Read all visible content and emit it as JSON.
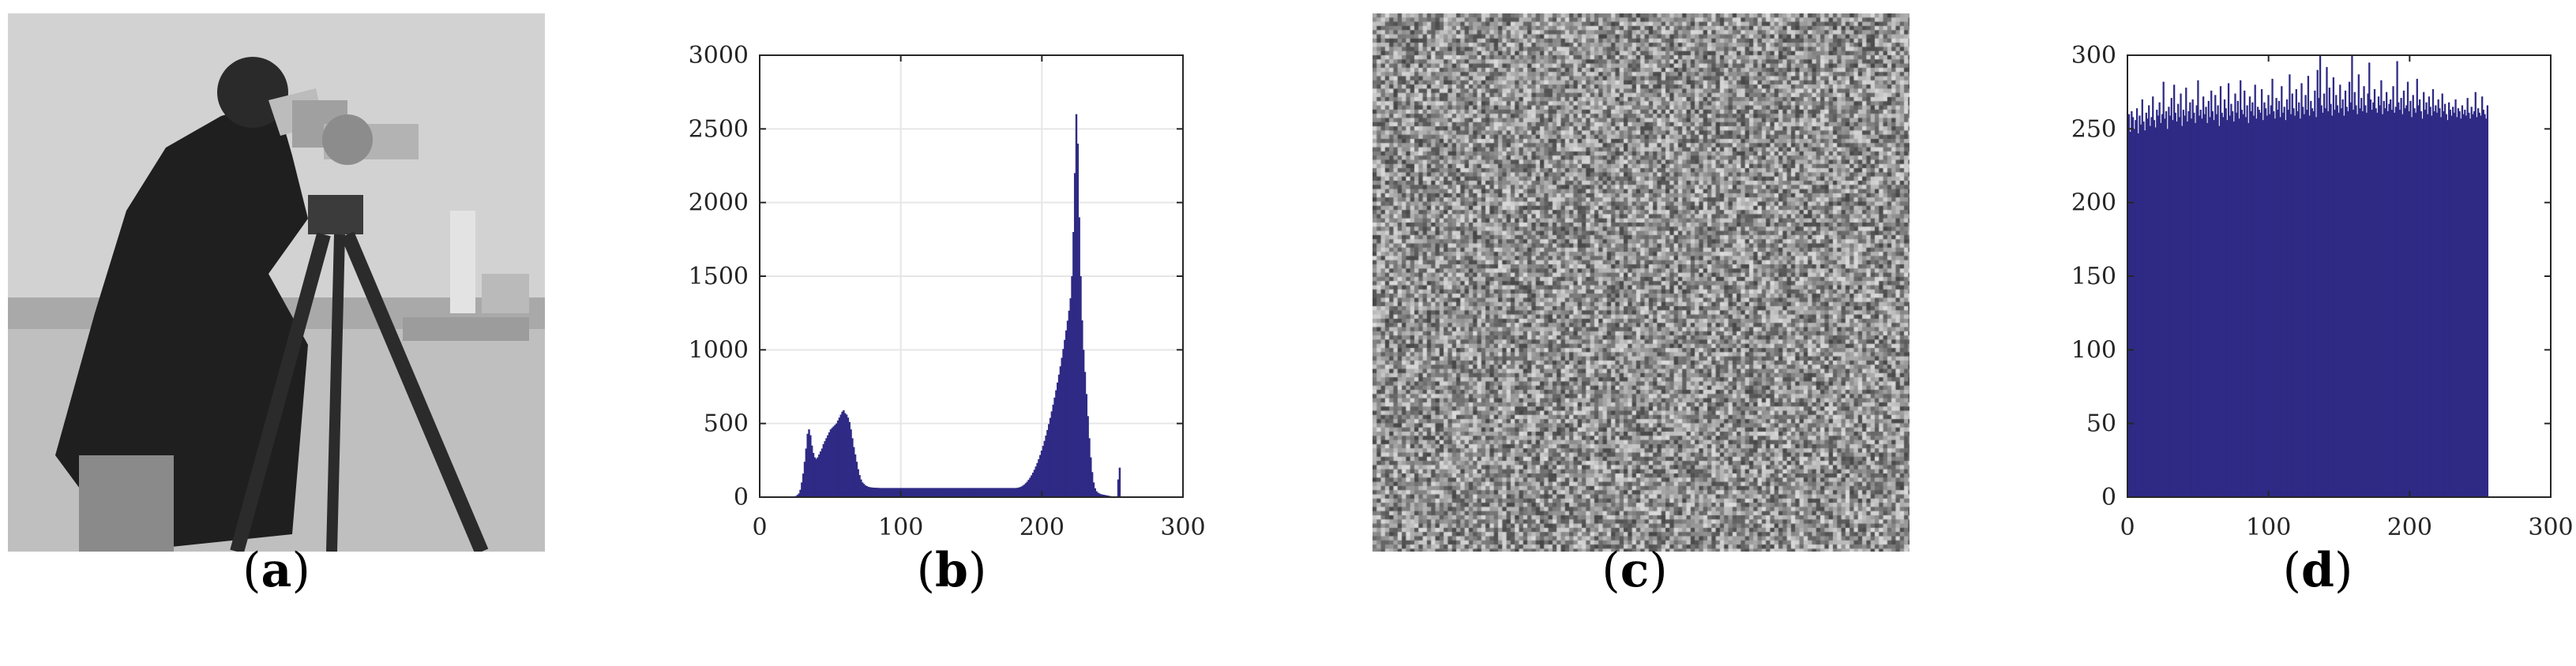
{
  "panels": {
    "a": {
      "label_open": "(",
      "label_letter": "a",
      "label_close": ")",
      "content": "cameraman grayscale photograph"
    },
    "b": {
      "label_open": "(",
      "label_letter": "b",
      "label_close": ")"
    },
    "c": {
      "label_open": "(",
      "label_letter": "c",
      "label_close": ")",
      "content": "uniform random noise image"
    },
    "d": {
      "label_open": "(",
      "label_letter": "d",
      "label_close": ")"
    }
  },
  "colors": {
    "bar": "#2e2a85",
    "grid": "#e6e6e6",
    "axis": "#262626"
  },
  "chart_data": [
    {
      "id": "b",
      "type": "bar",
      "title": "",
      "xlabel": "",
      "ylabel": "",
      "xlim": [
        0,
        300
      ],
      "ylim": [
        0,
        3000
      ],
      "xticks": [
        0,
        100,
        200,
        300
      ],
      "yticks": [
        0,
        500,
        1000,
        1500,
        2000,
        2500,
        3000
      ],
      "xtick_labels": [
        "0",
        "100",
        "200",
        "300"
      ],
      "ytick_labels": [
        "0",
        "500",
        "1000",
        "1500",
        "2000",
        "2500",
        "3000"
      ],
      "grid": true,
      "x_range": [
        0,
        255
      ],
      "values": [
        0,
        0,
        0,
        0,
        0,
        0,
        0,
        0,
        0,
        0,
        0,
        0,
        0,
        0,
        0,
        0,
        0,
        0,
        0,
        0,
        0,
        0,
        0,
        0,
        3,
        8,
        15,
        25,
        50,
        100,
        160,
        240,
        330,
        430,
        460,
        420,
        350,
        300,
        270,
        260,
        270,
        290,
        310,
        330,
        360,
        380,
        400,
        420,
        440,
        460,
        470,
        480,
        490,
        500,
        520,
        540,
        560,
        580,
        590,
        570,
        560,
        540,
        510,
        460,
        400,
        340,
        290,
        240,
        190,
        150,
        120,
        100,
        90,
        80,
        75,
        70,
        68,
        66,
        65,
        64,
        64,
        63,
        63,
        62,
        62,
        62,
        62,
        62,
        62,
        62,
        62,
        62,
        62,
        62,
        62,
        62,
        62,
        62,
        62,
        62,
        62,
        62,
        62,
        62,
        62,
        62,
        62,
        62,
        62,
        62,
        62,
        62,
        62,
        62,
        62,
        62,
        62,
        62,
        62,
        62,
        62,
        62,
        62,
        62,
        62,
        62,
        62,
        62,
        62,
        62,
        62,
        62,
        62,
        62,
        62,
        62,
        62,
        62,
        62,
        62,
        62,
        62,
        62,
        62,
        62,
        62,
        62,
        62,
        62,
        62,
        62,
        62,
        62,
        62,
        62,
        62,
        62,
        62,
        62,
        62,
        62,
        62,
        62,
        62,
        62,
        62,
        62,
        62,
        62,
        62,
        62,
        62,
        62,
        62,
        62,
        62,
        62,
        62,
        63,
        65,
        68,
        72,
        78,
        85,
        95,
        105,
        118,
        132,
        148,
        166,
        186,
        208,
        232,
        258,
        286,
        316,
        348,
        382,
        418,
        456,
        496,
        538,
        582,
        628,
        676,
        726,
        778,
        832,
        888,
        946,
        1006,
        1068,
        1132,
        1198,
        1266,
        1350,
        1500,
        1800,
        2200,
        2600,
        2400,
        1900,
        1500,
        1200,
        1000,
        850,
        700,
        550,
        400,
        270,
        170,
        100,
        60,
        40,
        30,
        25,
        20,
        18,
        16,
        14,
        12,
        10,
        8,
        6,
        4,
        3,
        2,
        2,
        120,
        200
      ]
    },
    {
      "id": "d",
      "type": "bar",
      "title": "",
      "xlabel": "",
      "ylabel": "",
      "xlim": [
        0,
        300
      ],
      "ylim": [
        0,
        300
      ],
      "xticks": [
        0,
        100,
        200,
        300
      ],
      "yticks": [
        0,
        50,
        100,
        150,
        200,
        250,
        300
      ],
      "xtick_labels": [
        "0",
        "100",
        "200",
        "300"
      ],
      "ytick_labels": [
        "0",
        "50",
        "100",
        "150",
        "200",
        "250",
        "300"
      ],
      "grid": false,
      "x_range": [
        0,
        255
      ],
      "values": [
        255,
        260,
        248,
        262,
        258,
        250,
        256,
        264,
        247,
        259,
        253,
        270,
        255,
        249,
        261,
        257,
        266,
        252,
        258,
        272,
        256,
        251,
        263,
        259,
        268,
        254,
        260,
        282,
        257,
        262,
        250,
        265,
        259,
        271,
        256,
        280,
        261,
        255,
        267,
        258,
        274,
        252,
        263,
        259,
        278,
        255,
        262,
        268,
        257,
        270,
        261,
        254,
        266,
        283,
        259,
        263,
        257,
        272,
        260,
        265,
        254,
        269,
        258,
        276,
        262,
        256,
        273,
        260,
        266,
        252,
        279,
        261,
        258,
        270,
        264,
        256,
        281,
        259,
        267,
        262,
        255,
        274,
        261,
        269,
        257,
        283,
        263,
        260,
        276,
        258,
        266,
        254,
        272,
        262,
        268,
        259,
        280,
        257,
        265,
        263,
        261,
        277,
        256,
        268,
        264,
        259,
        273,
        260,
        266,
        284,
        262,
        257,
        271,
        263,
        269,
        258,
        279,
        261,
        265,
        256,
        270,
        263,
        287,
        260,
        274,
        264,
        259,
        277,
        262,
        268,
        257,
        281,
        265,
        260,
        273,
        263,
        286,
        259,
        269,
        264,
        262,
        276,
        258,
        290,
        271,
        300,
        266,
        261,
        274,
        264,
        292,
        262,
        278,
        267,
        259,
        285,
        263,
        273,
        266,
        261,
        280,
        264,
        270,
        259,
        276,
        265,
        262,
        282,
        268,
        300,
        263,
        275,
        266,
        260,
        287,
        264,
        271,
        262,
        279,
        266,
        261,
        274,
        295,
        270,
        263,
        268,
        277,
        264,
        261,
        272,
        266,
        283,
        260,
        269,
        264,
        275,
        262,
        267,
        270,
        263,
        279,
        261,
        265,
        296,
        268,
        263,
        271,
        260,
        276,
        264,
        266,
        282,
        262,
        269,
        258,
        273,
        264,
        261,
        284,
        266,
        270,
        262,
        257,
        275,
        263,
        268,
        260,
        272,
        265,
        259,
        277,
        262,
        266,
        261,
        270,
        264,
        258,
        274,
        262,
        267,
        260,
        256,
        268,
        263,
        259,
        265,
        261,
        270,
        258,
        264,
        262,
        257,
        266,
        260,
        263,
        259,
        271,
        261,
        257,
        265,
        260,
        262,
        275,
        258,
        264,
        261,
        259,
        272,
        263,
        260,
        257,
        266
      ]
    }
  ]
}
